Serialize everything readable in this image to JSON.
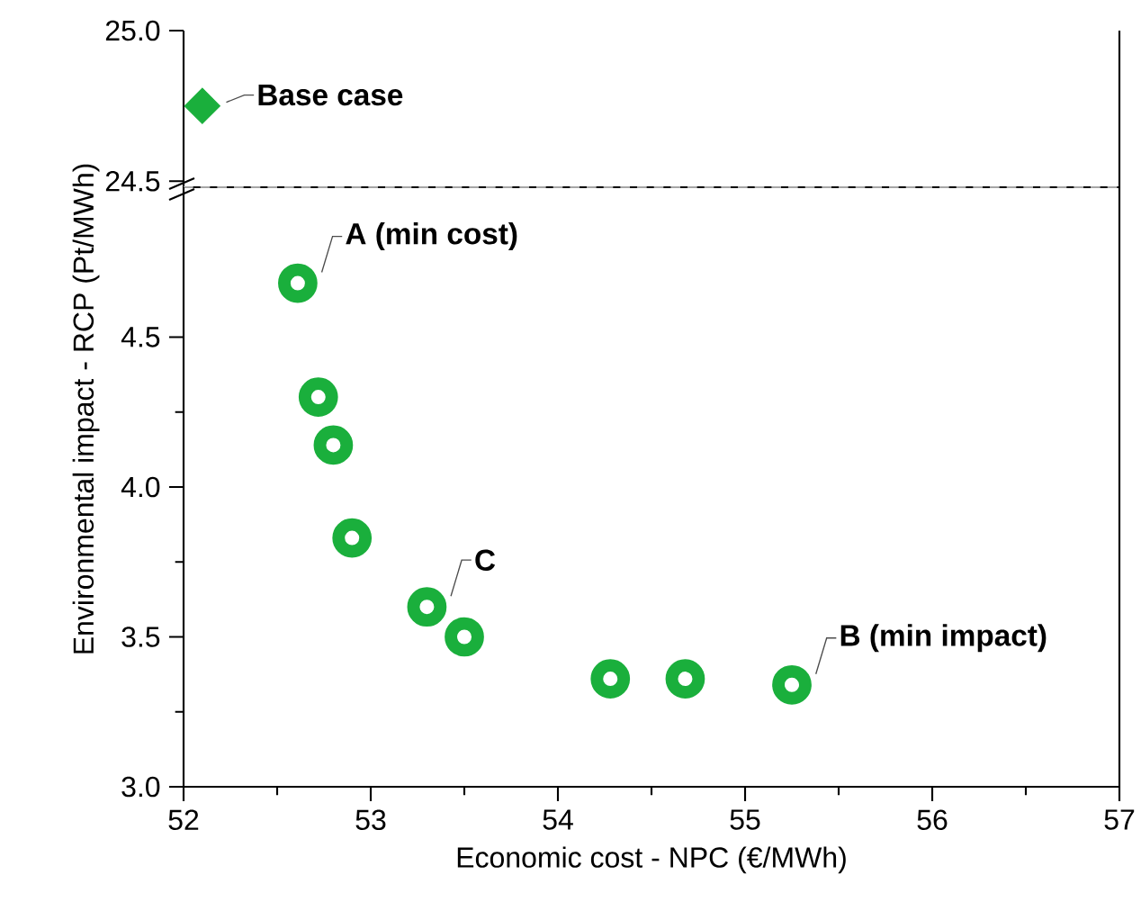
{
  "chart_data": [
    {
      "type": "scatter",
      "xlim": [
        52,
        57
      ],
      "ylim": [
        24.48,
        25.0
      ],
      "yticks": [
        24.5,
        {
          "value": 25.0,
          "label": "25.0"
        }
      ],
      "tick_labels": "y",
      "marker": "diamond",
      "series": [
        {
          "color": "#1aaf3c",
          "x": [
            52.1
          ],
          "values": [
            24.75
          ]
        }
      ],
      "ref_lines": [
        {
          "axis": "y",
          "value": 24.48,
          "color": "#a6a6a6",
          "line_style": "dashed"
        }
      ],
      "annotations": [
        {
          "text": "Base case",
          "x": 52.1,
          "y": 24.75
        }
      ]
    },
    {
      "type": "scatter",
      "xlim": [
        52,
        57
      ],
      "ylim": [
        3.0,
        5.0
      ],
      "xticks": [
        52,
        53,
        54,
        55,
        56,
        57
      ],
      "yticks": [
        {
          "value": 3.0,
          "label": "3.0"
        },
        3.5,
        {
          "value": 4.0,
          "label": "4.0"
        },
        4.5
      ],
      "xlabel": "Economic cost - NPC (€/MWh)",
      "ylabel": "Environmental impact - RCP (Pt/MWh)",
      "marker": "circle",
      "series": [
        {
          "color": "#1aaf3c",
          "x": [
            52.61,
            52.72,
            52.8,
            52.9,
            53.3,
            53.5,
            54.28,
            54.68,
            55.25
          ],
          "values": [
            4.68,
            4.3,
            4.14,
            3.83,
            3.6,
            3.5,
            3.36,
            3.36,
            3.34
          ]
        }
      ],
      "annotations": [
        {
          "text": "A (min cost)",
          "x": 52.61,
          "y": 4.68
        },
        {
          "text": "C",
          "x": 53.3,
          "y": 3.6
        },
        {
          "text": "B (min impact)",
          "x": 55.25,
          "y": 3.34
        }
      ]
    }
  ]
}
